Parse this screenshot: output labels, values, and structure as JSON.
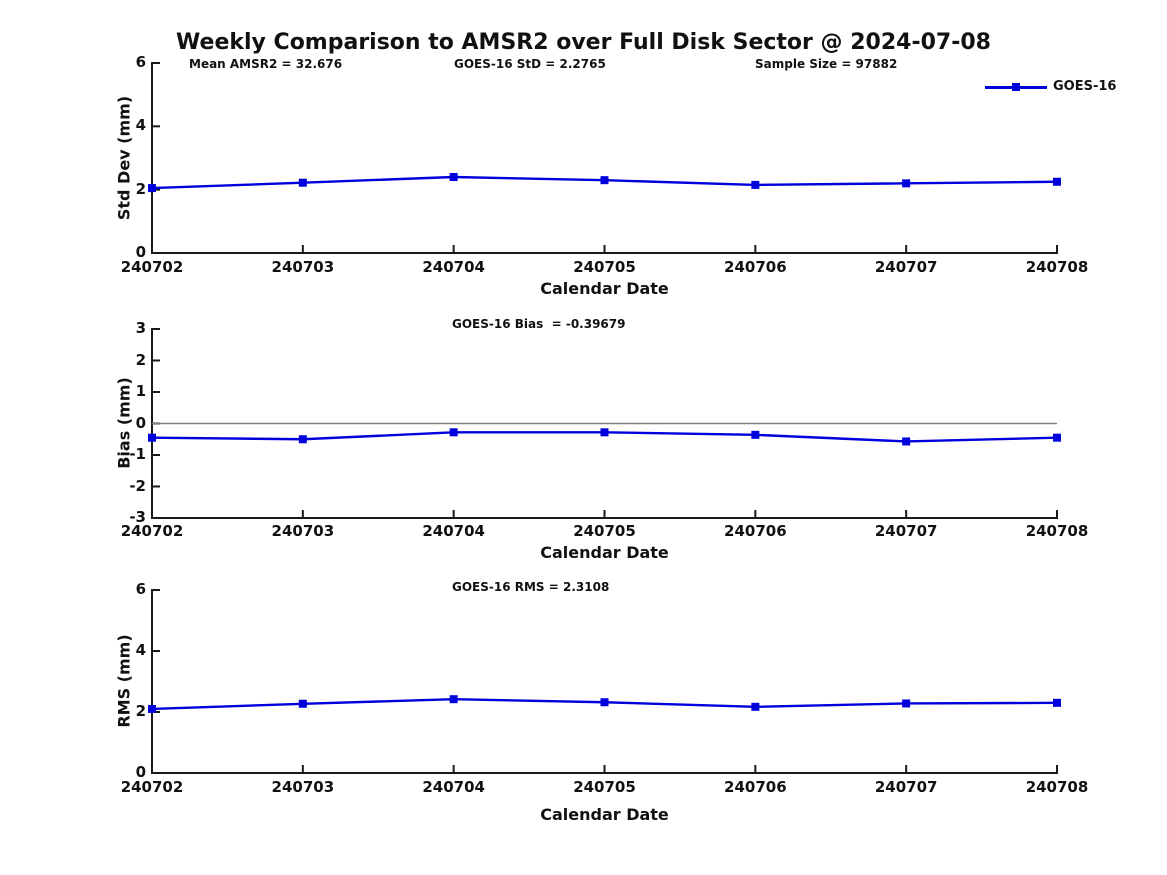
{
  "page": {
    "title": "Weekly Comparison to AMSR2 over Full Disk Sector @ 2024-07-08"
  },
  "colors": {
    "line": "#0000dd",
    "marker": "#0000dd",
    "axis": "#1a1a1a",
    "zero_line": "#808080",
    "text": "#111111"
  },
  "legend": {
    "label": "GOES-16",
    "position": "top-right-outside"
  },
  "chart_data": [
    {
      "type": "line",
      "name": "std-dev",
      "ylabel": "Std Dev (mm)",
      "xlabel": "Calendar Date",
      "ylim": [
        0,
        6
      ],
      "yticks": [
        0,
        2,
        4,
        6
      ],
      "grid": false,
      "categories": [
        "240702",
        "240703",
        "240704",
        "240705",
        "240706",
        "240707",
        "240708"
      ],
      "series": [
        {
          "name": "GOES-16",
          "values": [
            2.05,
            2.22,
            2.4,
            2.3,
            2.15,
            2.2,
            2.25
          ]
        }
      ],
      "annotations": [
        "Mean AMSR2 = 32.676",
        "GOES-16 StD = 2.2765",
        "Sample Size = 97882"
      ]
    },
    {
      "type": "line",
      "name": "bias",
      "ylabel": "Bias (mm)",
      "xlabel": "Calendar Date",
      "ylim": [
        -3,
        3
      ],
      "yticks": [
        -3,
        -2,
        -1,
        0,
        1,
        2,
        3
      ],
      "zero_line": true,
      "grid": false,
      "categories": [
        "240702",
        "240703",
        "240704",
        "240705",
        "240706",
        "240707",
        "240708"
      ],
      "series": [
        {
          "name": "GOES-16",
          "values": [
            -0.45,
            -0.5,
            -0.28,
            -0.28,
            -0.36,
            -0.57,
            -0.45
          ]
        }
      ],
      "annotations": [
        "GOES-16 Bias  = -0.39679"
      ]
    },
    {
      "type": "line",
      "name": "rms",
      "ylabel": "RMS (mm)",
      "xlabel": "Calendar Date",
      "ylim": [
        0,
        6
      ],
      "yticks": [
        0,
        2,
        4,
        6
      ],
      "grid": false,
      "categories": [
        "240702",
        "240703",
        "240704",
        "240705",
        "240706",
        "240707",
        "240708"
      ],
      "series": [
        {
          "name": "GOES-16",
          "values": [
            2.1,
            2.27,
            2.42,
            2.32,
            2.17,
            2.28,
            2.3
          ]
        }
      ],
      "annotations": [
        "GOES-16 RMS = 2.3108"
      ]
    }
  ]
}
